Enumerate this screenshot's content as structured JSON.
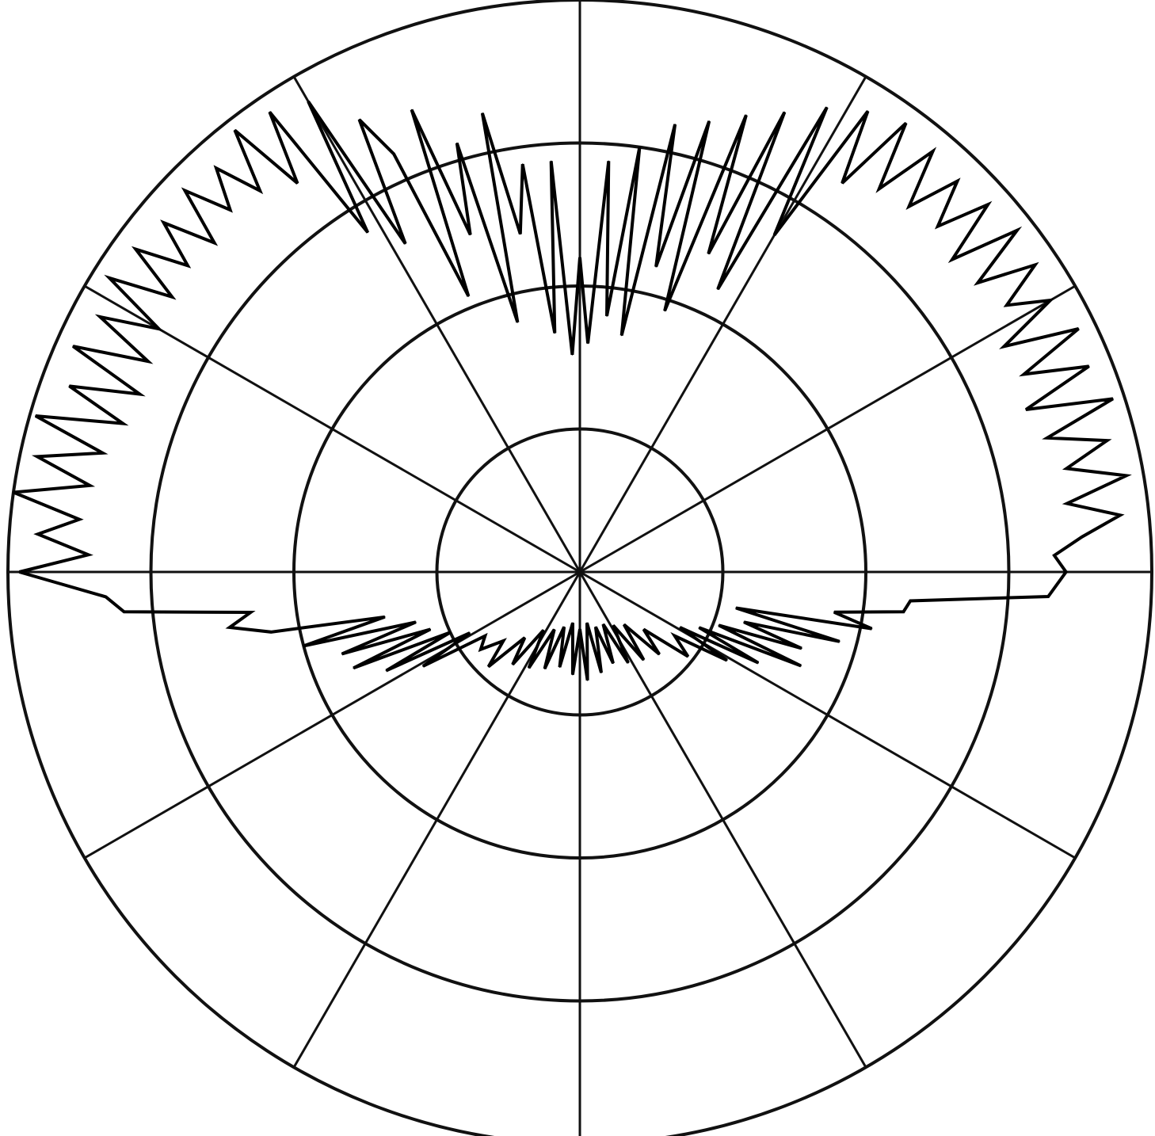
{
  "chart_data": {
    "type": "polar-line",
    "title": "",
    "rings": [
      0.25,
      0.5,
      0.75,
      1.0
    ],
    "spoke_step_deg": 30,
    "grid": true,
    "zero_direction": "up",
    "angle_direction": "clockwise",
    "r_max": 1.0,
    "series": [
      {
        "points": [
          [
            -90,
            0.98
          ],
          [
            -88,
            0.86
          ],
          [
            -86,
            0.95
          ],
          [
            -84,
            0.88
          ],
          [
            -82,
            1.0
          ],
          [
            -80,
            0.87
          ],
          [
            -78,
            0.97
          ],
          [
            -76,
            0.86
          ],
          [
            -74,
            0.99
          ],
          [
            -72,
            0.84
          ],
          [
            -70,
            0.95
          ],
          [
            -68,
            0.83
          ],
          [
            -66,
            0.97
          ],
          [
            -64,
            0.84
          ],
          [
            -62,
            0.95
          ],
          [
            -60,
            0.85
          ],
          [
            -58,
            0.97
          ],
          [
            -56,
            0.86
          ],
          [
            -54,
            0.96
          ],
          [
            -52,
            0.87
          ],
          [
            -50,
            0.95
          ],
          [
            -48,
            0.86
          ],
          [
            -46,
            0.96
          ],
          [
            -44,
            0.88
          ],
          [
            -42,
            0.95
          ],
          [
            -40,
            0.87
          ],
          [
            -38,
            0.98
          ],
          [
            -36,
            0.84
          ],
          [
            -34,
            0.97
          ],
          [
            -32,
            0.7
          ],
          [
            -30,
            0.95
          ],
          [
            -28,
            0.65
          ],
          [
            -26,
            0.88
          ],
          [
            -24,
            0.8
          ],
          [
            -22,
            0.52
          ],
          [
            -20,
            0.86
          ],
          [
            -18,
            0.62
          ],
          [
            -16,
            0.78
          ],
          [
            -14,
            0.45
          ],
          [
            -12,
            0.82
          ],
          [
            -10,
            0.6
          ],
          [
            -8,
            0.72
          ],
          [
            -6,
            0.42
          ],
          [
            -4,
            0.72
          ],
          [
            -2,
            0.38
          ],
          [
            0,
            0.55
          ],
          [
            2,
            0.4
          ],
          [
            4,
            0.72
          ],
          [
            6,
            0.45
          ],
          [
            8,
            0.75
          ],
          [
            10,
            0.42
          ],
          [
            12,
            0.8
          ],
          [
            14,
            0.55
          ],
          [
            16,
            0.82
          ],
          [
            18,
            0.48
          ],
          [
            20,
            0.85
          ],
          [
            22,
            0.6
          ],
          [
            24,
            0.88
          ],
          [
            26,
            0.55
          ],
          [
            28,
            0.92
          ],
          [
            30,
            0.68
          ],
          [
            32,
            0.95
          ],
          [
            34,
            0.82
          ],
          [
            36,
            0.97
          ],
          [
            38,
            0.85
          ],
          [
            40,
            0.96
          ],
          [
            42,
            0.86
          ],
          [
            44,
            0.95
          ],
          [
            46,
            0.87
          ],
          [
            48,
            0.96
          ],
          [
            50,
            0.85
          ],
          [
            52,
            0.97
          ],
          [
            54,
            0.86
          ],
          [
            56,
            0.96
          ],
          [
            58,
            0.88
          ],
          [
            60,
            0.95
          ],
          [
            62,
            0.84
          ],
          [
            64,
            0.97
          ],
          [
            66,
            0.85
          ],
          [
            68,
            0.96
          ],
          [
            70,
            0.83
          ],
          [
            72,
            0.98
          ],
          [
            74,
            0.85
          ],
          [
            76,
            0.95
          ],
          [
            78,
            0.87
          ],
          [
            80,
            0.97
          ],
          [
            82,
            0.86
          ],
          [
            84,
            0.95
          ],
          [
            86,
            0.88
          ],
          [
            88,
            0.83
          ],
          [
            90,
            0.85
          ],
          [
            93,
            0.82
          ],
          [
            95,
            0.58
          ],
          [
            97,
            0.57
          ],
          [
            99,
            0.45
          ],
          [
            101,
            0.52
          ],
          [
            103,
            0.28
          ],
          [
            105,
            0.47
          ],
          [
            107,
            0.3
          ],
          [
            109,
            0.41
          ],
          [
            111,
            0.26
          ],
          [
            113,
            0.42
          ],
          [
            115,
            0.23
          ],
          [
            117,
            0.35
          ],
          [
            119,
            0.2
          ],
          [
            121,
            0.3
          ],
          [
            124,
            0.2
          ],
          [
            128,
            0.24
          ],
          [
            132,
            0.15
          ],
          [
            136,
            0.2
          ],
          [
            140,
            0.12
          ],
          [
            144,
            0.19
          ],
          [
            148,
            0.11
          ],
          [
            152,
            0.18
          ],
          [
            156,
            0.1
          ],
          [
            160,
            0.17
          ],
          [
            164,
            0.1
          ],
          [
            168,
            0.18
          ],
          [
            172,
            0.09
          ],
          [
            176,
            0.19
          ],
          [
            180,
            0.1
          ],
          [
            184,
            0.18
          ],
          [
            188,
            0.09
          ],
          [
            192,
            0.17
          ],
          [
            196,
            0.1
          ],
          [
            200,
            0.18
          ],
          [
            204,
            0.11
          ],
          [
            208,
            0.19
          ],
          [
            212,
            0.12
          ],
          [
            216,
            0.2
          ],
          [
            220,
            0.15
          ],
          [
            224,
            0.23
          ],
          [
            228,
            0.18
          ],
          [
            232,
            0.22
          ],
          [
            236,
            0.2
          ],
          [
            239,
            0.32
          ],
          [
            241,
            0.22
          ],
          [
            243,
            0.38
          ],
          [
            245,
            0.25
          ],
          [
            247,
            0.43
          ],
          [
            249,
            0.28
          ],
          [
            251,
            0.44
          ],
          [
            253,
            0.3
          ],
          [
            255,
            0.5
          ],
          [
            257,
            0.35
          ],
          [
            259,
            0.55
          ],
          [
            261,
            0.62
          ],
          [
            263,
            0.58
          ],
          [
            265,
            0.8
          ],
          [
            267,
            0.83
          ],
          [
            270,
            0.98
          ]
        ]
      }
    ]
  }
}
